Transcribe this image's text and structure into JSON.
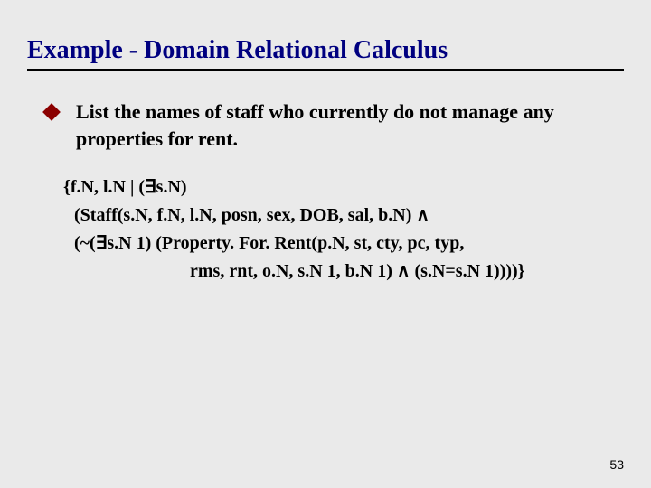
{
  "title": "Example - Domain Relational Calculus",
  "colors": {
    "title": "#000080",
    "bullet": "#8b0000",
    "text": "#000000",
    "underline": "#000000",
    "background": "#eaeaea"
  },
  "typography": {
    "title_fontsize": 28,
    "body_fontsize": 22,
    "formula_fontsize": 20,
    "page_fontsize": 14,
    "font_family": "Georgia, Times New Roman, serif"
  },
  "bullet": {
    "text": "List the names of staff who currently do not manage any properties for rent."
  },
  "formula": {
    "line1": "{f.N, l.N | (∃s.N)",
    "line2": "(Staff(s.N, f.N, l.N, posn, sex, DOB, sal, b.N) ∧",
    "line3": "(~(∃s.N 1) (Property. For. Rent(p.N, st, cty, pc, typ,",
    "line4": "rms, rnt, o.N, s.N 1, b.N 1) ∧ (s.N=s.N 1))))}"
  },
  "page_number": "53"
}
